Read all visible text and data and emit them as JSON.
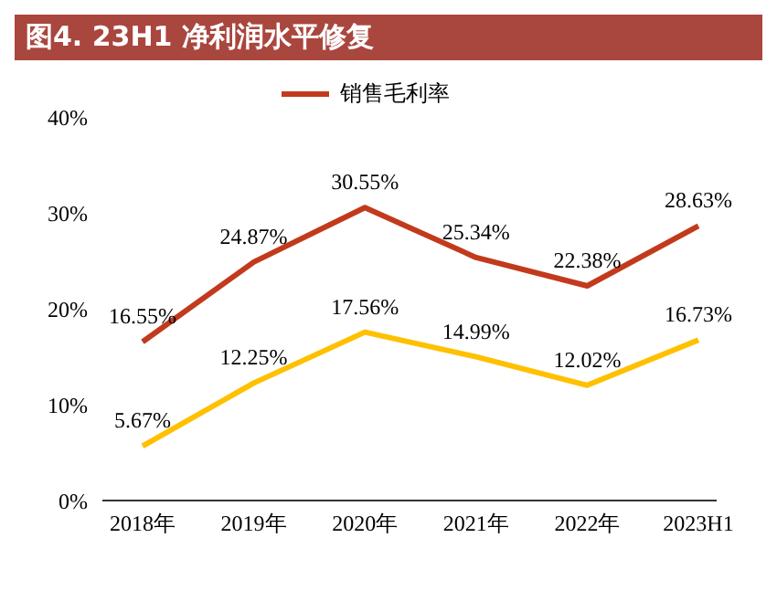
{
  "chart_data": {
    "type": "line",
    "title": "图4. 23H1 净利润水平修复",
    "categories": [
      "2018年",
      "2019年",
      "2020年",
      "2021年",
      "2022年",
      "2023H1"
    ],
    "series": [
      {
        "name": "销售毛利率",
        "color": "#c23a1c",
        "values": [
          16.55,
          24.87,
          30.55,
          25.34,
          22.38,
          28.63
        ],
        "value_labels": [
          "16.55%",
          "24.87%",
          "30.55%",
          "25.34%",
          "22.38%",
          "28.63%"
        ]
      },
      {
        "color": "#ffc000",
        "values": [
          5.67,
          12.25,
          17.56,
          14.99,
          12.02,
          16.73
        ],
        "value_labels": [
          "5.67%",
          "12.25%",
          "17.56%",
          "14.99%",
          "12.02%",
          "16.73%"
        ]
      }
    ],
    "ylim": [
      0,
      40
    ],
    "yticks": [
      {
        "value": 0,
        "label": "0%"
      },
      {
        "value": 10,
        "label": "10%"
      },
      {
        "value": 20,
        "label": "20%"
      },
      {
        "value": 30,
        "label": "30%"
      },
      {
        "value": 40,
        "label": "40%"
      }
    ],
    "grid": false,
    "legend": "top",
    "marker": "none",
    "line_style": "solid"
  }
}
